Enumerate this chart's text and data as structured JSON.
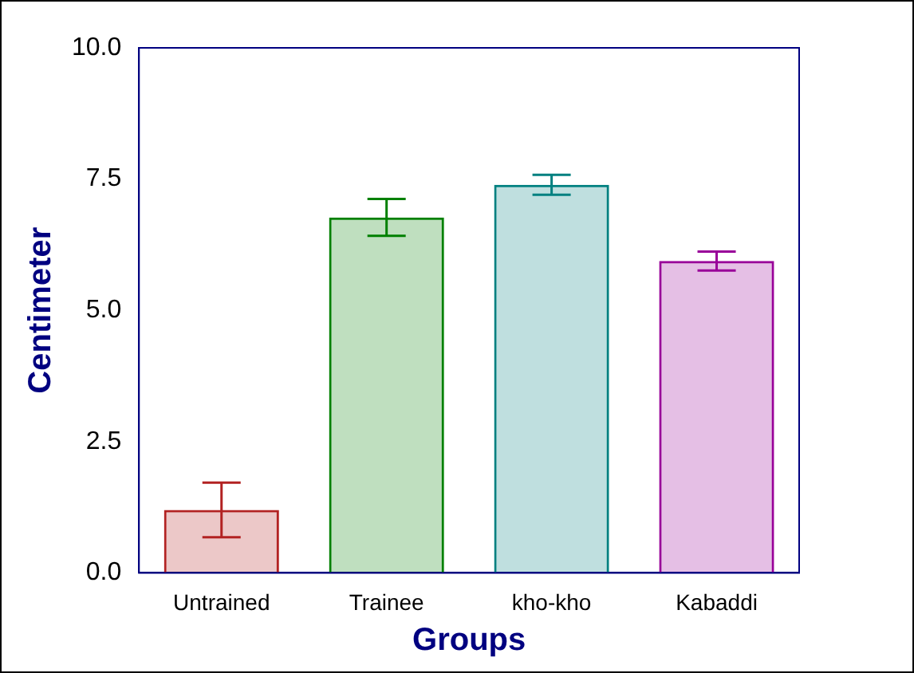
{
  "chart_data": {
    "type": "bar",
    "xlabel": "Groups",
    "ylabel": "Centimeter",
    "categories": [
      "Untrained",
      "Trainee",
      "kho-kho",
      "Kabaddi"
    ],
    "values": [
      1.2,
      6.77,
      7.39,
      5.94
    ],
    "errors": [
      0.52,
      0.35,
      0.19,
      0.18
    ],
    "colors": [
      "#b22222",
      "#008000",
      "#008080",
      "#990099"
    ],
    "ylim": [
      0,
      10
    ],
    "yticks": [
      {
        "value": 0,
        "label": "0.0"
      },
      {
        "value": 2.5,
        "label": "2.5"
      },
      {
        "value": 5,
        "label": "5.0"
      },
      {
        "value": 7.5,
        "label": "7.5"
      },
      {
        "value": 10,
        "label": "10.0"
      }
    ],
    "grid": false,
    "legend": false
  }
}
